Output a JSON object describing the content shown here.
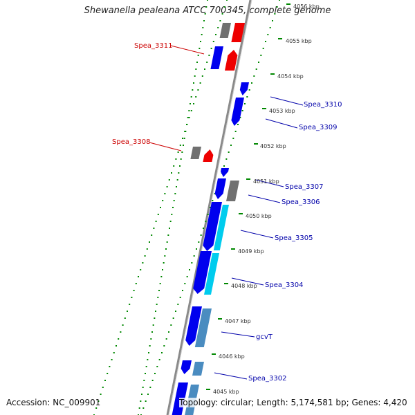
{
  "title": "Shewanella pealeana ATCC 700345, complete genome",
  "accession": "Accession: NC_009901",
  "topology": "Topology: circular; Length: 5,174,581 bp; Genes: 4,420",
  "kbp_ticks": [
    "4056 kbp",
    "4055 kbp",
    "4054 kbp",
    "4053 kbp",
    "4052 kbp",
    "4051 kbp",
    "4050 kbp",
    "4049 kbp",
    "4048 kbp",
    "4047 kbp",
    "4046 kbp",
    "4045 kbp"
  ],
  "gene_labels": [
    "Spea_3311",
    "Spea_3310",
    "Spea_3309",
    "Spea_3308",
    "Spea_3307",
    "Spea_3306",
    "Spea_3305",
    "Spea_3304",
    "gcvT",
    "Spea_3302"
  ],
  "colors": {
    "reverse_label": "#cc0000",
    "forward_label": "#0000aa",
    "forward_gene": "#0000ee",
    "reverse_gene": "#ee0000",
    "gray_gene": "#707070",
    "cyan_gene": "#00ccee",
    "steel_gene": "#4a8cc0",
    "tick_green": "#008800"
  }
}
